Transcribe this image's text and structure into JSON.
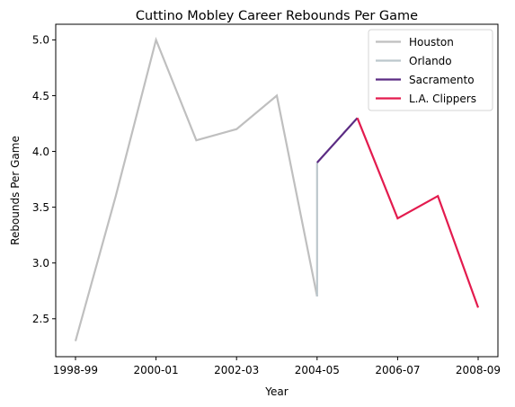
{
  "chart_data": {
    "type": "line",
    "title": "Cuttino Mobley Career Rebounds Per Game",
    "xlabel": "Year",
    "ylabel": "Rebounds Per Game",
    "x_categories": [
      "1998-99",
      "1999-00",
      "2000-01",
      "2001-02",
      "2002-03",
      "2003-04",
      "2004-05",
      "2005-06",
      "2006-07",
      "2007-08",
      "2008-09"
    ],
    "x_tick_labels": [
      "1998-99",
      "2000-01",
      "2002-03",
      "2004-05",
      "2006-07",
      "2008-09"
    ],
    "ylim": [
      2.16,
      5.14
    ],
    "y_ticks": [
      2.5,
      3.0,
      3.5,
      4.0,
      4.5,
      5.0
    ],
    "y_tick_labels": [
      "2.5",
      "3.0",
      "3.5",
      "4.0",
      "4.5",
      "5.0"
    ],
    "grid": false,
    "legend_position": "top-right",
    "series": [
      {
        "name": "Houston",
        "color": "#bfbfbf",
        "points": [
          {
            "x": "1998-99",
            "y": 2.3
          },
          {
            "x": "1999-00",
            "y": 3.6
          },
          {
            "x": "2000-01",
            "y": 5.0
          },
          {
            "x": "2001-02",
            "y": 4.1
          },
          {
            "x": "2002-03",
            "y": 4.2
          },
          {
            "x": "2003-04",
            "y": 4.5
          },
          {
            "x": "2004-05",
            "y": 2.7
          }
        ]
      },
      {
        "name": "Orlando",
        "color": "#bcc7cc",
        "points": [
          {
            "x": "2004-05",
            "y": 2.7
          },
          {
            "x": "2004-05",
            "y": 3.9
          }
        ]
      },
      {
        "name": "Sacramento",
        "color": "#5b2b83",
        "points": [
          {
            "x": "2004-05",
            "y": 3.9
          },
          {
            "x": "2005-06",
            "y": 4.3
          }
        ]
      },
      {
        "name": "L.A. Clippers",
        "color": "#e31b4e",
        "points": [
          {
            "x": "2005-06",
            "y": 4.3
          },
          {
            "x": "2006-07",
            "y": 3.4
          },
          {
            "x": "2007-08",
            "y": 3.6
          },
          {
            "x": "2008-09",
            "y": 2.6
          }
        ]
      }
    ]
  }
}
